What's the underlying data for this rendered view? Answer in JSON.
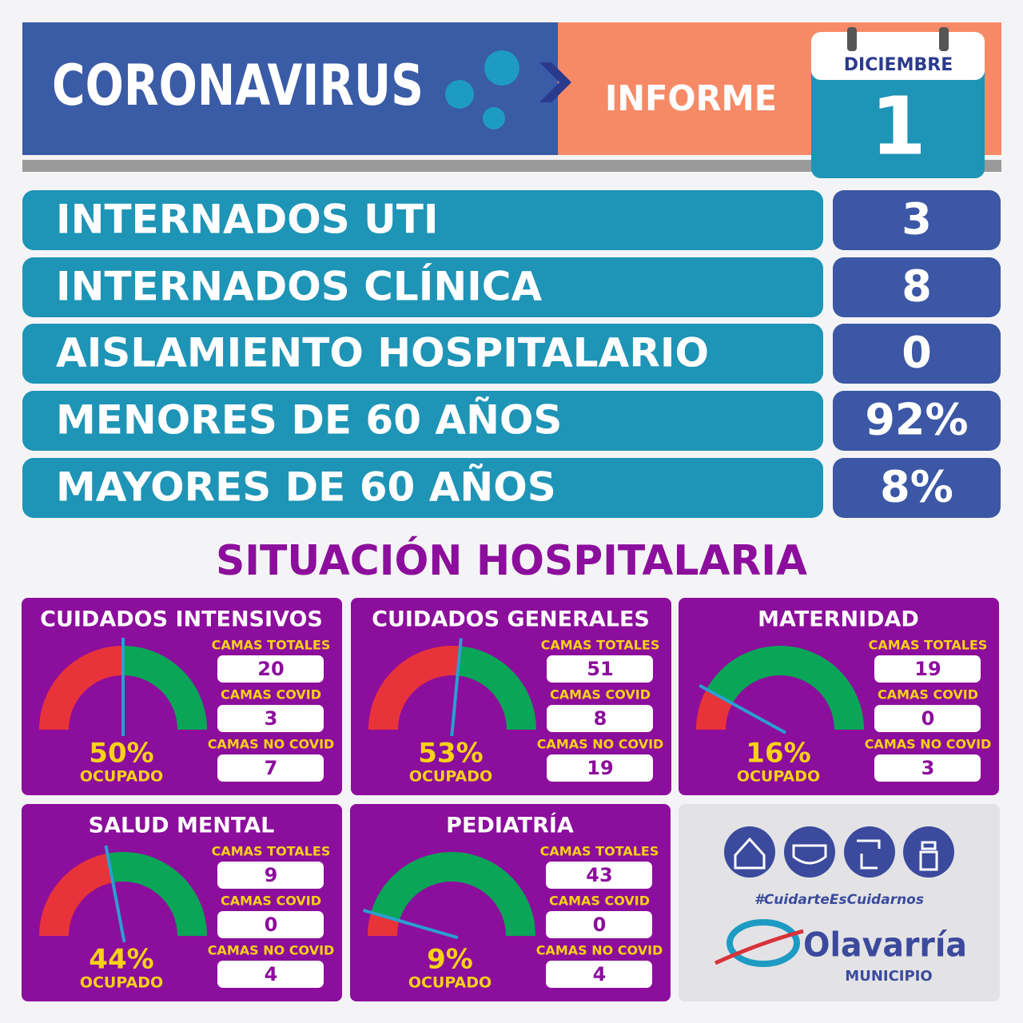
{
  "header": {
    "title": "CORONAVIRUS",
    "report": "INFORME",
    "month": "DICIEMBRE",
    "day": "1"
  },
  "stats": [
    {
      "label": "INTERNADOS UTI",
      "value": "3"
    },
    {
      "label": "INTERNADOS CLÍNICA",
      "value": "8"
    },
    {
      "label": "AISLAMIENTO HOSPITALARIO",
      "value": "0"
    },
    {
      "label": "MENORES DE 60 AÑOS",
      "value": "92%"
    },
    {
      "label": "MAYORES DE 60 AÑOS",
      "value": "8%"
    }
  ],
  "hospital": {
    "title": "SITUACIÓN HOSPITALARIA",
    "units": [
      {
        "name": "CUIDADOS INTENSIVOS",
        "occupancy": {
          "value": 50,
          "label": "50%"
        },
        "occupied_label": "OCUPADO",
        "beds": [
          {
            "label": "CAMAS TOTALES",
            "value": 20
          },
          {
            "label": "CAMAS COVID",
            "value": 3
          },
          {
            "label": "CAMAS NO COVID",
            "value": 7
          }
        ]
      },
      {
        "name": "CUIDADOS GENERALES",
        "occupancy": {
          "value": 53,
          "label": "53%"
        },
        "occupied_label": "OCUPADO",
        "beds": [
          {
            "label": "CAMAS TOTALES",
            "value": 51
          },
          {
            "label": "CAMAS COVID",
            "value": 8
          },
          {
            "label": "CAMAS NO COVID",
            "value": 19
          }
        ]
      },
      {
        "name": "MATERNIDAD",
        "occupancy": {
          "value": 16,
          "label": "16%"
        },
        "occupied_label": "OCUPADO",
        "beds": [
          {
            "label": "CAMAS TOTALES",
            "value": 19
          },
          {
            "label": "CAMAS COVID",
            "value": 0
          },
          {
            "label": "CAMAS NO COVID",
            "value": 3
          }
        ]
      },
      {
        "name": "SALUD MENTAL",
        "occupancy": {
          "value": 44,
          "label": "44%"
        },
        "occupied_label": "OCUPADO",
        "beds": [
          {
            "label": "CAMAS TOTALES",
            "value": 9
          },
          {
            "label": "CAMAS COVID",
            "value": 0
          },
          {
            "label": "CAMAS NO COVID",
            "value": 4
          }
        ]
      },
      {
        "name": "PEDIATRÍA",
        "occupancy": {
          "value": 9,
          "label": "9%"
        },
        "occupied_label": "OCUPADO",
        "beds": [
          {
            "label": "CAMAS TOTALES",
            "value": 43
          },
          {
            "label": "CAMAS COVID",
            "value": 0
          },
          {
            "label": "CAMAS NO COVID",
            "value": 4
          }
        ]
      }
    ]
  },
  "footer": {
    "hashtag": "#CuidarteEsCuidarnos",
    "brand": "Olavarría",
    "sub": "MUNICIPIO"
  }
}
